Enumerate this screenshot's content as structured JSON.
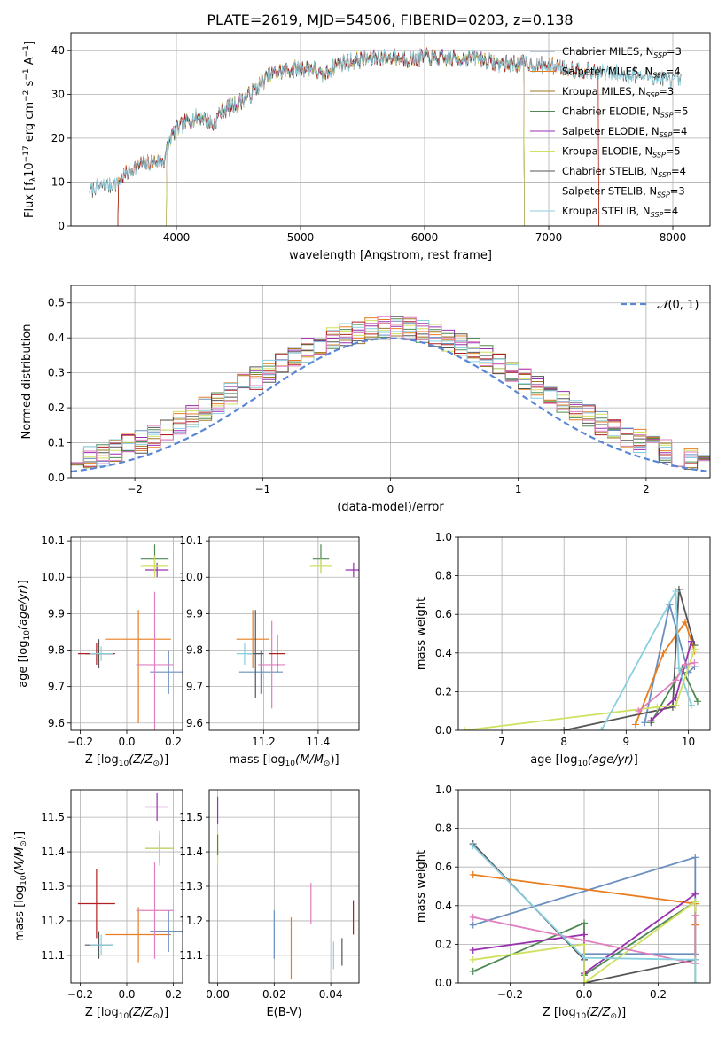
{
  "title": "PLATE=2619, MJD=54506, FIBERID=0203, z=0.138",
  "colors": {
    "Chabrier MILES": "#6a8fbf",
    "Salpeter MILES": "#e87d20",
    "Kroupa MILES": "#a07a20",
    "Chabrier ELODIE": "#4e8a52",
    "Salpeter ELODIE": "#9a2fb0",
    "Kroupa ELODIE": "#d0e060",
    "Chabrier STELIB": "#555555",
    "Salpeter STELIB": "#b02020",
    "Kroupa STELIB": "#88cfdf",
    "Pink": "#e07fbf",
    "Normal": "#5a86d6"
  },
  "chart_data": [
    {
      "id": "spectrum",
      "type": "line",
      "xlabel": "wavelength [Angstrom, rest frame]",
      "ylabel": "Flux [f_λ 10^-17 erg cm^-2 s^-1 A^-1]",
      "xlim": [
        3150,
        8300
      ],
      "ylim": [
        0,
        44
      ],
      "xticks": [
        4000,
        5000,
        6000,
        7000,
        8000
      ],
      "yticks": [
        0,
        10,
        20,
        30,
        40
      ],
      "legend_position": "right",
      "series": [
        {
          "name": "Chabrier MILES, N_SSP=3",
          "color": "#6a8fbf",
          "range": [
            3530,
            6800
          ]
        },
        {
          "name": "Salpeter MILES, N_SSP=4",
          "color": "#e87d20",
          "range": [
            3530,
            7400
          ]
        },
        {
          "name": "Kroupa MILES, N_SSP=3",
          "color": "#a07a20",
          "range": [
            3530,
            6800
          ]
        },
        {
          "name": "Chabrier ELODIE, N_SSP=5",
          "color": "#4e8a52",
          "range": [
            3920,
            6800
          ]
        },
        {
          "name": "Salpeter ELODIE, N_SSP=4",
          "color": "#9a2fb0",
          "range": [
            3920,
            6800
          ]
        },
        {
          "name": "Kroupa ELODIE, N_SSP=5",
          "color": "#d0e060",
          "range": [
            3920,
            6800
          ]
        },
        {
          "name": "Chabrier STELIB, N_SSP=4",
          "color": "#555555",
          "range": [
            3300,
            8070
          ]
        },
        {
          "name": "Salpeter STELIB, N_SSP=3",
          "color": "#b02020",
          "range": [
            3530,
            7400
          ]
        },
        {
          "name": "Kroupa STELIB, N_SSP=4",
          "color": "#88cfdf",
          "range": [
            3300,
            8070
          ]
        }
      ],
      "continuum": [
        [
          3300,
          8.5
        ],
        [
          3500,
          9.5
        ],
        [
          3600,
          12
        ],
        [
          3700,
          14
        ],
        [
          3800,
          14.5
        ],
        [
          3900,
          15
        ],
        [
          3950,
          20
        ],
        [
          4000,
          22
        ],
        [
          4100,
          24
        ],
        [
          4200,
          25
        ],
        [
          4300,
          23
        ],
        [
          4350,
          26
        ],
        [
          4500,
          28
        ],
        [
          4600,
          30
        ],
        [
          4700,
          33
        ],
        [
          4800,
          35
        ],
        [
          4900,
          35.5
        ],
        [
          5000,
          36
        ],
        [
          5100,
          36
        ],
        [
          5170,
          34
        ],
        [
          5300,
          37
        ],
        [
          5500,
          38
        ],
        [
          5700,
          38.5
        ],
        [
          5890,
          38
        ],
        [
          6000,
          38.5
        ],
        [
          6200,
          38
        ],
        [
          6400,
          38.5
        ],
        [
          6563,
          37
        ],
        [
          6800,
          37
        ],
        [
          7000,
          36.5
        ],
        [
          7400,
          35
        ],
        [
          7800,
          34
        ],
        [
          8070,
          33
        ]
      ]
    },
    {
      "id": "residuals",
      "type": "area",
      "xlabel": "(data-model)/error",
      "ylabel": "Normed distribution",
      "xlim": [
        -2.5,
        2.5
      ],
      "ylim": [
        0,
        0.55
      ],
      "xticks": [
        -2,
        -1,
        0,
        1,
        2
      ],
      "yticks": [
        0.0,
        0.1,
        0.2,
        0.3,
        0.4,
        0.5
      ],
      "legend": "N(0,1)",
      "legend_position": "top-right",
      "bin_width": 0.1
    },
    {
      "id": "Z-age",
      "type": "scatter",
      "xlabel": "Z [log10(Z/Z_sun)]",
      "ylabel": "age [log10(age/yr)]",
      "xlim": [
        -0.24,
        0.24
      ],
      "ylim": [
        9.58,
        10.11
      ],
      "xticks": [
        -0.2,
        0.0,
        0.2
      ],
      "yticks": [
        9.6,
        9.7,
        9.8,
        9.9,
        10.0,
        10.1
      ],
      "points": [
        {
          "x": 0.05,
          "y": 9.83,
          "xerr": 0.14,
          "yerr": 0.08,
          "color": "#e87d20",
          "yerr_low": 0.23
        },
        {
          "x": 0.18,
          "y": 9.74,
          "xerr": 0.08,
          "yerr": 0.06,
          "color": "#6a8fbf"
        },
        {
          "x": -0.12,
          "y": 9.79,
          "xerr": 0.06,
          "yerr": 0.04,
          "color": "#555555"
        },
        {
          "x": 0.12,
          "y": 10.05,
          "xerr": 0.06,
          "yerr": 0.04,
          "color": "#4e8a52"
        },
        {
          "x": 0.13,
          "y": 10.02,
          "xerr": 0.05,
          "yerr": 0.02,
          "color": "#9a2fb0"
        },
        {
          "x": 0.12,
          "y": 10.03,
          "xerr": 0.06,
          "yerr": 0.03,
          "color": "#d0e060"
        },
        {
          "x": 0.12,
          "y": 9.76,
          "xerr": 0.08,
          "yerr": 0.2,
          "color": "#e07fbf"
        },
        {
          "x": -0.13,
          "y": 9.79,
          "xerr": 0.08,
          "yerr": 0.03,
          "color": "#b02020"
        },
        {
          "x": -0.11,
          "y": 9.79,
          "xerr": 0.05,
          "yerr": 0.02,
          "color": "#88cfdf"
        }
      ]
    },
    {
      "id": "mass-age",
      "type": "scatter",
      "xlabel": "mass [log10(M/M_sun)]",
      "ylabel": "",
      "xlim": [
        11.0,
        11.55
      ],
      "ylim": [
        9.58,
        10.11
      ],
      "xticks": [
        11.2,
        11.4
      ],
      "yticks": [
        9.6,
        9.7,
        9.8,
        9.9,
        10.0,
        10.1
      ],
      "points": [
        {
          "x": 11.16,
          "y": 9.83,
          "xerr": 0.06,
          "yerr": 0.08,
          "color": "#e87d20"
        },
        {
          "x": 11.19,
          "y": 9.74,
          "xerr": 0.08,
          "yerr": 0.06,
          "color": "#6a8fbf"
        },
        {
          "x": 11.17,
          "y": 9.79,
          "xerr": 0.03,
          "yerr": 0.12,
          "color": "#555555"
        },
        {
          "x": 11.41,
          "y": 10.05,
          "xerr": 0.03,
          "yerr": 0.04,
          "color": "#4e8a52"
        },
        {
          "x": 11.53,
          "y": 10.02,
          "xerr": 0.03,
          "yerr": 0.02,
          "color": "#9a2fb0"
        },
        {
          "x": 11.41,
          "y": 10.03,
          "xerr": 0.04,
          "yerr": 0.02,
          "color": "#d0e060"
        },
        {
          "x": 11.23,
          "y": 9.76,
          "xerr": 0.05,
          "yerr": 0.12,
          "color": "#e07fbf"
        },
        {
          "x": 11.25,
          "y": 9.79,
          "xerr": 0.03,
          "yerr": 0.05,
          "color": "#b02020"
        },
        {
          "x": 11.13,
          "y": 9.79,
          "xerr": 0.03,
          "yerr": 0.03,
          "color": "#88cfdf"
        }
      ]
    },
    {
      "id": "age-weight",
      "type": "line",
      "xlabel": "age [log10(age/yr)]",
      "ylabel": "mass weight",
      "xlim": [
        6.3,
        10.35
      ],
      "ylim": [
        0,
        1.0
      ],
      "xticks": [
        7,
        8,
        9,
        10
      ],
      "yticks": [
        0.0,
        0.2,
        0.4,
        0.6,
        0.8,
        1.0
      ],
      "series": [
        {
          "color": "#6a8fbf",
          "points": [
            [
              9.3,
              0.04
            ],
            [
              9.7,
              0.65
            ],
            [
              10.0,
              0.3
            ],
            [
              10.1,
              0.33
            ]
          ]
        },
        {
          "color": "#e87d20",
          "points": [
            [
              9.15,
              0.03
            ],
            [
              9.6,
              0.4
            ],
            [
              9.95,
              0.56
            ],
            [
              10.1,
              0.41
            ]
          ]
        },
        {
          "color": "#555555",
          "points": [
            [
              8.0,
              0.0
            ],
            [
              9.75,
              0.12
            ],
            [
              9.85,
              0.73
            ],
            [
              10.1,
              0.44
            ]
          ]
        },
        {
          "color": "#4e8a52",
          "points": [
            [
              9.4,
              0.04
            ],
            [
              9.8,
              0.26
            ],
            [
              9.9,
              0.32
            ],
            [
              10.15,
              0.15
            ]
          ]
        },
        {
          "color": "#9a2fb0",
          "points": [
            [
              9.4,
              0.05
            ],
            [
              9.8,
              0.17
            ],
            [
              10.05,
              0.46
            ]
          ]
        },
        {
          "color": "#d0e060",
          "points": [
            [
              6.4,
              0.0
            ],
            [
              9.5,
              0.12
            ],
            [
              9.8,
              0.13
            ],
            [
              10.1,
              0.42
            ]
          ]
        },
        {
          "color": "#e07fbf",
          "points": [
            [
              9.2,
              0.1
            ],
            [
              9.8,
              0.26
            ],
            [
              9.95,
              0.34
            ],
            [
              10.1,
              0.35
            ]
          ]
        },
        {
          "color": "#88cfdf",
          "points": [
            [
              8.6,
              0.0
            ],
            [
              9.8,
              0.72
            ],
            [
              9.85,
              0.32
            ],
            [
              10.05,
              0.13
            ]
          ]
        }
      ]
    },
    {
      "id": "Z-mass",
      "type": "scatter",
      "xlabel": "Z [log10(Z/Z_sun)]",
      "ylabel": "mass [log10(M/M_sun)]",
      "xlim": [
        -0.24,
        0.24
      ],
      "ylim": [
        11.02,
        11.58
      ],
      "xticks": [
        -0.2,
        0.0,
        0.2
      ],
      "yticks": [
        11.1,
        11.2,
        11.3,
        11.4,
        11.5
      ],
      "points": [
        {
          "x": 0.05,
          "y": 11.16,
          "xerr": 0.14,
          "yerr": 0.08,
          "color": "#e87d20"
        },
        {
          "x": 0.18,
          "y": 11.17,
          "xerr": 0.08,
          "yerr": 0.06,
          "color": "#6a8fbf"
        },
        {
          "x": -0.12,
          "y": 11.13,
          "xerr": 0.06,
          "yerr": 0.04,
          "color": "#555555"
        },
        {
          "x": 0.14,
          "y": 11.41,
          "xerr": 0.06,
          "yerr": 0.04,
          "color": "#4e8a52"
        },
        {
          "x": 0.13,
          "y": 11.53,
          "xerr": 0.05,
          "yerr": 0.04,
          "color": "#9a2fb0"
        },
        {
          "x": 0.14,
          "y": 11.41,
          "xerr": 0.06,
          "yerr": 0.05,
          "color": "#d0e060"
        },
        {
          "x": 0.12,
          "y": 11.23,
          "xerr": 0.08,
          "yerr": 0.14,
          "color": "#e07fbf"
        },
        {
          "x": -0.13,
          "y": 11.25,
          "xerr": 0.08,
          "yerr": 0.1,
          "color": "#b02020"
        },
        {
          "x": -0.11,
          "y": 11.13,
          "xerr": 0.05,
          "yerr": 0.03,
          "color": "#88cfdf"
        }
      ]
    },
    {
      "id": "EBV-mass",
      "type": "scatter",
      "xlabel": "E(B-V)",
      "ylabel": "",
      "xlim": [
        -0.003,
        0.05
      ],
      "ylim": [
        11.02,
        11.58
      ],
      "xticks": [
        0.0,
        0.02,
        0.04
      ],
      "yticks": [
        11.1,
        11.2,
        11.3,
        11.4,
        11.5
      ],
      "points": [
        {
          "x": 0.02,
          "y": 11.16,
          "yerr": 0.07,
          "color": "#6a8fbf"
        },
        {
          "x": 0.026,
          "y": 11.12,
          "yerr": 0.09,
          "color": "#e87d20"
        },
        {
          "x": 0.0,
          "y": 11.41,
          "yerr": 0.05,
          "color": "#d0e060"
        },
        {
          "x": 0.0,
          "y": 11.52,
          "yerr": 0.04,
          "color": "#9a2fb0"
        },
        {
          "x": 0.0,
          "y": 11.42,
          "yerr": 0.03,
          "color": "#4e8a52"
        },
        {
          "x": 0.033,
          "y": 11.25,
          "yerr": 0.06,
          "color": "#e07fbf"
        },
        {
          "x": 0.041,
          "y": 11.1,
          "yerr": 0.04,
          "color": "#88cfdf"
        },
        {
          "x": 0.044,
          "y": 11.11,
          "yerr": 0.04,
          "color": "#555555"
        },
        {
          "x": 0.048,
          "y": 11.21,
          "yerr": 0.05,
          "color": "#b02020"
        }
      ]
    },
    {
      "id": "Z-weight",
      "type": "line",
      "xlabel": "Z [log10(Z/Z_sun)]",
      "ylabel": "mass weight",
      "xlim": [
        -0.34,
        0.34
      ],
      "ylim": [
        0,
        1.0
      ],
      "xticks": [
        -0.2,
        0.0,
        0.2
      ],
      "yticks": [
        0.0,
        0.2,
        0.4,
        0.6,
        0.8,
        1.0
      ],
      "series": [
        {
          "color": "#6a8fbf",
          "points": [
            [
              -0.3,
              0.3
            ],
            [
              0.3,
              0.65
            ],
            [
              0.3,
              0.15
            ],
            [
              0.0,
              0.15
            ]
          ]
        },
        {
          "color": "#e87d20",
          "points": [
            [
              -0.3,
              0.56
            ],
            [
              0.3,
              0.41
            ],
            [
              0.3,
              0.3
            ]
          ]
        },
        {
          "color": "#555555",
          "points": [
            [
              -0.3,
              0.72
            ],
            [
              0.0,
              0.12
            ],
            [
              0.0,
              0.0
            ],
            [
              0.3,
              0.12
            ]
          ]
        },
        {
          "color": "#4e8a52",
          "points": [
            [
              -0.3,
              0.06
            ],
            [
              0.0,
              0.31
            ],
            [
              0.0,
              0.04
            ],
            [
              0.3,
              0.42
            ],
            [
              0.3,
              0.0
            ]
          ]
        },
        {
          "color": "#9a2fb0",
          "points": [
            [
              -0.3,
              0.17
            ],
            [
              0.0,
              0.25
            ],
            [
              0.0,
              0.05
            ],
            [
              0.3,
              0.46
            ]
          ]
        },
        {
          "color": "#d0e060",
          "points": [
            [
              -0.3,
              0.12
            ],
            [
              0.0,
              0.2
            ],
            [
              0.0,
              0.0
            ],
            [
              0.3,
              0.42
            ],
            [
              0.3,
              0.1
            ]
          ]
        },
        {
          "color": "#e07fbf",
          "points": [
            [
              -0.3,
              0.34
            ],
            [
              0.0,
              0.22
            ],
            [
              0.3,
              0.1
            ],
            [
              0.3,
              0.35
            ]
          ]
        },
        {
          "color": "#88cfdf",
          "points": [
            [
              -0.3,
              0.71
            ],
            [
              0.0,
              0.13
            ],
            [
              0.3,
              0.12
            ],
            [
              0.3,
              0.0
            ]
          ]
        }
      ]
    }
  ]
}
